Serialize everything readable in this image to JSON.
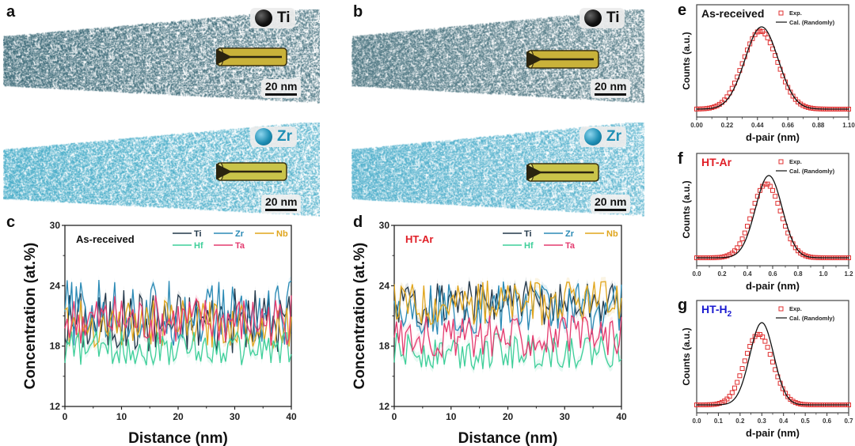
{
  "panels": {
    "a": {
      "letter": "a"
    },
    "b": {
      "letter": "b"
    },
    "c": {
      "letter": "c"
    },
    "d": {
      "letter": "d"
    },
    "e": {
      "letter": "e"
    },
    "f": {
      "letter": "f"
    },
    "g": {
      "letter": "g"
    }
  },
  "apt_maps": [
    {
      "panel": "a",
      "element": "Ti",
      "sphere_color": "#111111",
      "dot_color": "#2e5f6e",
      "scale_label": "20 nm"
    },
    {
      "panel": "a",
      "element": "Zr",
      "sphere_color": "#1f8fb5",
      "dot_color": "#3aa6c4",
      "scale_label": "20 nm"
    },
    {
      "panel": "b",
      "element": "Ti",
      "sphere_color": "#111111",
      "dot_color": "#3f6b78",
      "scale_label": "20 nm"
    },
    {
      "panel": "b",
      "element": "Zr",
      "sphere_color": "#1f8fb5",
      "dot_color": "#45aac8",
      "scale_label": "20 nm"
    }
  ],
  "colors": {
    "Ti": "#23384a",
    "Zr": "#2b8ab5",
    "Nb": "#e0a51c",
    "Hf": "#3fcf9a",
    "Ta": "#e43b6f",
    "exp": "#e03030",
    "cal": "#111111",
    "as_received": "#111111",
    "ht_ar": "#e01e26",
    "ht_h2": "#1a1ad0"
  },
  "chart_data": [
    {
      "id": "c",
      "type": "line",
      "title": "As-received",
      "xlabel": "Distance (nm)",
      "ylabel": "Concentration (at.%)",
      "xlim": [
        0,
        40
      ],
      "ylim": [
        12,
        30
      ],
      "xticks": [
        0,
        10,
        20,
        30,
        40
      ],
      "yticks": [
        12,
        18,
        24,
        30
      ],
      "legend_position": "top-right",
      "legend": [
        "Ti",
        "Zr",
        "Nb",
        "Hf",
        "Ta"
      ],
      "series": [
        {
          "name": "Ti",
          "mean": 20.5,
          "range": [
            16.8,
            25.2
          ]
        },
        {
          "name": "Zr",
          "mean": 21.3,
          "range": [
            16.0,
            24.6
          ]
        },
        {
          "name": "Nb",
          "mean": 20.2,
          "range": [
            17.5,
            23.6
          ]
        },
        {
          "name": "Hf",
          "mean": 17.8,
          "range": [
            15.5,
            20.0
          ]
        },
        {
          "name": "Ta",
          "mean": 20.5,
          "range": [
            17.2,
            23.8
          ]
        }
      ]
    },
    {
      "id": "d",
      "type": "line",
      "title": "HT-Ar",
      "xlabel": "Distance (nm)",
      "ylabel": "Concentration (at.%)",
      "xlim": [
        0,
        40
      ],
      "ylim": [
        12,
        30
      ],
      "xticks": [
        0,
        10,
        20,
        30,
        40
      ],
      "yticks": [
        12,
        18,
        24,
        30
      ],
      "legend_position": "top-right",
      "legend": [
        "Ti",
        "Zr",
        "Nb",
        "Hf",
        "Ta"
      ],
      "series": [
        {
          "name": "Ti",
          "mean": 22.3,
          "range": [
            19.0,
            24.7
          ]
        },
        {
          "name": "Zr",
          "mean": 21.8,
          "range": [
            18.5,
            25.4
          ]
        },
        {
          "name": "Nb",
          "mean": 22.3,
          "range": [
            19.5,
            25.3
          ]
        },
        {
          "name": "Hf",
          "mean": 17.5,
          "range": [
            15.3,
            20.0
          ]
        },
        {
          "name": "Ta",
          "mean": 19.0,
          "range": [
            16.8,
            22.2
          ]
        }
      ]
    },
    {
      "id": "e",
      "type": "scatter",
      "title": "As-received",
      "xlabel": "d-pair (nm)",
      "ylabel": "Counts (a.u.)",
      "xlim": [
        0,
        1.1
      ],
      "xticks": [
        "0.00",
        "0.22",
        "0.44",
        "0.66",
        "0.88",
        "1.10"
      ],
      "legend_position": "top-right",
      "legend": [
        "Exp.",
        "Cal. (Randomly)"
      ],
      "series": [
        {
          "name": "Exp.",
          "kind": "markers",
          "peak_x": 0.46,
          "sigma": 0.125,
          "peak_height": 0.95
        },
        {
          "name": "Cal. (Randomly)",
          "kind": "line",
          "peak_x": 0.47,
          "sigma": 0.12,
          "peak_height": 1.0
        }
      ]
    },
    {
      "id": "f",
      "type": "scatter",
      "title": "HT-Ar",
      "xlabel": "d-pair (nm)",
      "ylabel": "Counts (a.u.)",
      "xlim": [
        0,
        1.2
      ],
      "xticks": [
        "0.0",
        "0.2",
        "0.4",
        "0.6",
        "0.8",
        "1.0",
        "1.2"
      ],
      "legend_position": "top-right",
      "legend": [
        "Exp.",
        "Cal. (Randomly)"
      ],
      "series": [
        {
          "name": "Exp.",
          "kind": "markers",
          "peak_x": 0.55,
          "sigma": 0.115,
          "peak_height": 0.9
        },
        {
          "name": "Cal. (Randomly)",
          "kind": "line",
          "peak_x": 0.57,
          "sigma": 0.105,
          "peak_height": 1.0
        }
      ]
    },
    {
      "id": "g",
      "type": "scatter",
      "title": "HT-H",
      "title_subscript": "2",
      "xlabel": "d-pair (nm)",
      "ylabel": "Counts (a.u.)",
      "xlim": [
        0,
        0.7
      ],
      "xticks": [
        "0.0",
        "0.1",
        "0.2",
        "0.3",
        "0.4",
        "0.5",
        "0.6",
        "0.7"
      ],
      "legend_position": "top-right",
      "legend": [
        "Exp.",
        "Cal. (Randomly)"
      ],
      "series": [
        {
          "name": "Exp.",
          "kind": "markers",
          "peak_x": 0.285,
          "sigma": 0.065,
          "peak_height": 0.86
        },
        {
          "name": "Cal. (Randomly)",
          "kind": "line",
          "peak_x": 0.3,
          "sigma": 0.055,
          "peak_height": 1.0
        }
      ]
    }
  ]
}
